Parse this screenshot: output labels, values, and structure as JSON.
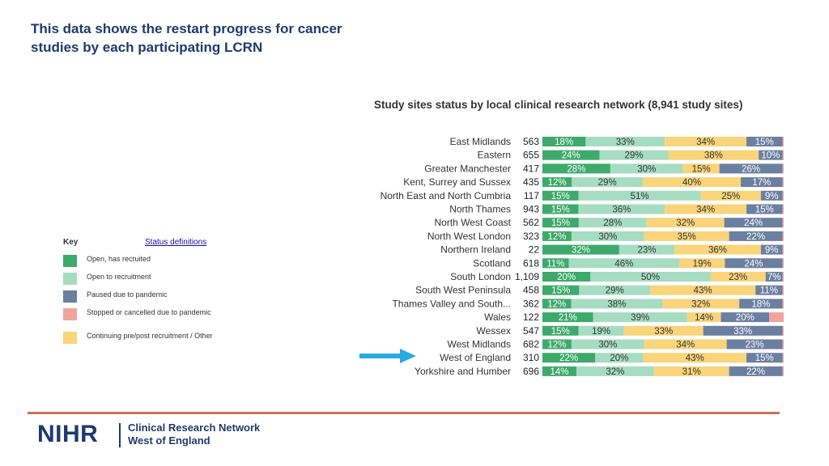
{
  "slide": {
    "title": "This data shows the restart progress for cancer studies by each participating LCRN"
  },
  "key": {
    "title": "Key",
    "link_label": "Status definitions",
    "items": [
      {
        "label": "Open, has recruited",
        "color": "#3daa6b"
      },
      {
        "label": "Open to recruitment",
        "color": "#a6dcc2"
      },
      {
        "label": "Paused due to pandemic",
        "color": "#6b7fa0"
      },
      {
        "label": "Stopped or cancelled due to pandemic",
        "color": "#f2a39e"
      },
      {
        "label": "Continuing pre/post recruitment / Other",
        "color": "#f9d47a"
      }
    ]
  },
  "chart_data": {
    "type": "bar",
    "orientation": "horizontal",
    "stacked": true,
    "normalized": true,
    "title": "Study sites status by local clinical research network (8,941 study sites)",
    "categories": [
      "East Midlands",
      "Eastern",
      "Greater Manchester",
      "Kent, Surrey and Sussex",
      "North East and North Cumbria",
      "North Thames",
      "North West Coast",
      "North West London",
      "Northern Ireland",
      "Scotland",
      "South London",
      "South West Peninsula",
      "Thames Valley and South...",
      "Wales",
      "Wessex",
      "West Midlands",
      "West of England",
      "Yorkshire and Humber"
    ],
    "totals": [
      "563",
      "655",
      "417",
      "435",
      "117",
      "943",
      "562",
      "323",
      "22",
      "618",
      "1,109",
      "458",
      "362",
      "122",
      "547",
      "682",
      "310",
      "696"
    ],
    "highlighted_category": "West of England",
    "series": [
      {
        "name": "Open, has recruited",
        "color": "#3daa6b",
        "values": [
          18,
          24,
          28,
          12,
          15,
          15,
          15,
          12,
          32,
          11,
          20,
          15,
          12,
          21,
          15,
          12,
          22,
          14
        ]
      },
      {
        "name": "Open to recruitment",
        "color": "#a6dcc2",
        "values": [
          33,
          29,
          30,
          29,
          51,
          36,
          28,
          30,
          23,
          46,
          50,
          29,
          38,
          39,
          19,
          30,
          20,
          32
        ]
      },
      {
        "name": "Continuing pre/post recruitment / Other",
        "color": "#f9d47a",
        "values": [
          34,
          38,
          15,
          40,
          25,
          34,
          32,
          35,
          36,
          19,
          23,
          43,
          32,
          14,
          33,
          34,
          43,
          31
        ]
      },
      {
        "name": "Paused due to pandemic",
        "color": "#6b7fa0",
        "values": [
          15,
          10,
          26,
          17,
          9,
          15,
          24,
          22,
          9,
          24,
          7,
          11,
          18,
          20,
          33,
          23,
          15,
          22
        ]
      },
      {
        "name": "Stopped or cancelled due to pandemic",
        "color": "#f2a39e",
        "values": [
          0.5,
          0.5,
          0.5,
          0.5,
          0.5,
          0.5,
          0.5,
          0.5,
          0.5,
          0.5,
          0.5,
          0.5,
          0.5,
          6,
          0.5,
          0.5,
          0.5,
          0.5
        ]
      }
    ],
    "data_labels": [
      [
        "18%",
        "33%",
        "34%",
        "15%",
        ""
      ],
      [
        "24%",
        "29%",
        "38%",
        "10%",
        ""
      ],
      [
        "28%",
        "30%",
        "15%",
        "26%",
        ""
      ],
      [
        "12%",
        "29%",
        "40%",
        "17%",
        ""
      ],
      [
        "15%",
        "51%",
        "25%",
        "9%",
        ""
      ],
      [
        "15%",
        "36%",
        "34%",
        "15%",
        ""
      ],
      [
        "15%",
        "28%",
        "32%",
        "24%",
        ""
      ],
      [
        "12%",
        "30%",
        "35%",
        "22%",
        ""
      ],
      [
        "32%",
        "23%",
        "36%",
        "9%",
        ""
      ],
      [
        "11%",
        "46%",
        "19%",
        "24%",
        ""
      ],
      [
        "20%",
        "50%",
        "23%",
        "7%",
        ""
      ],
      [
        "15%",
        "29%",
        "43%",
        "11%",
        ""
      ],
      [
        "12%",
        "38%",
        "32%",
        "18%",
        ""
      ],
      [
        "21%",
        "39%",
        "14%",
        "20%",
        ""
      ],
      [
        "15%",
        "19%",
        "33%",
        "33%",
        ""
      ],
      [
        "12%",
        "30%",
        "34%",
        "23%",
        ""
      ],
      [
        "22%",
        "20%",
        "43%",
        "15%",
        ""
      ],
      [
        "14%",
        "32%",
        "31%",
        "22%",
        ""
      ]
    ],
    "xlim": [
      0,
      100
    ],
    "grid": false,
    "legend_placement": "left"
  },
  "colors": {
    "title_blue": "#1f3a6e",
    "arrow_blue": "#29abe2",
    "divider": "#cf6f5b"
  },
  "footer": {
    "logo_text": "NIHR",
    "network_line1": "Clinical Research Network",
    "network_line2": "West of England"
  }
}
